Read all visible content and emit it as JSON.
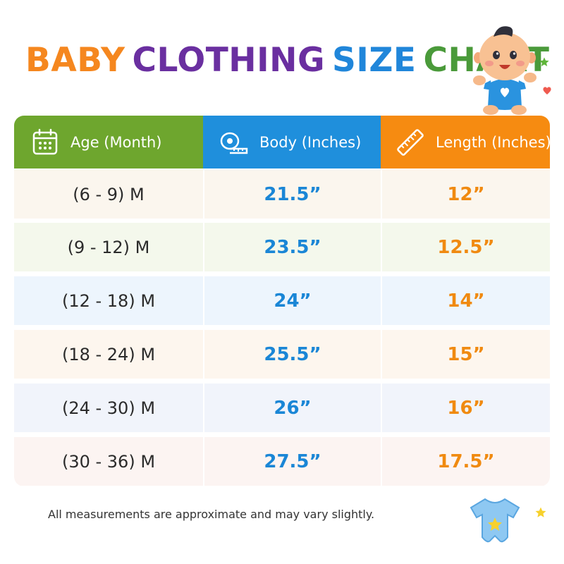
{
  "title": {
    "words": [
      {
        "text": "BABY",
        "color": "#f5871f"
      },
      {
        "text": "CLOTHING",
        "color": "#6a2fa0"
      },
      {
        "text": "SIZE",
        "color": "#2086da"
      },
      {
        "text": "CHART",
        "color": "#4a9a3a"
      }
    ]
  },
  "table": {
    "headers": [
      {
        "label": "Age (Month)",
        "icon": "calendar-icon",
        "color": "#6ea62e"
      },
      {
        "label": "Body (Inches)",
        "icon": "measuring-tape-icon",
        "color": "#1f8fdc"
      },
      {
        "label": "Length (Inches)",
        "icon": "ruler-icon",
        "color": "#f68b11"
      }
    ],
    "rows": [
      {
        "age": "(6 - 9) M",
        "body": "21.5”",
        "length": "12”",
        "bg": "#fbf6ee"
      },
      {
        "age": "(9 - 12) M",
        "body": "23.5”",
        "length": "12.5”",
        "bg": "#f4f8ec"
      },
      {
        "age": "(12 - 18) M",
        "body": "24”",
        "length": "14”",
        "bg": "#edf5fd"
      },
      {
        "age": "(18 - 24) M",
        "body": "25.5”",
        "length": "15”",
        "bg": "#fdf6ee"
      },
      {
        "age": "(24 - 30) M",
        "body": "26”",
        "length": "16”",
        "bg": "#f1f4fb"
      },
      {
        "age": "(30 - 36) M",
        "body": "27.5”",
        "length": "17.5”",
        "bg": "#fcf4f2"
      }
    ]
  },
  "footnote": "All measurements are approximate and may vary slightly.",
  "decorations": {
    "baby_illustration": "baby-icon",
    "onesie_illustration": "onesie-icon",
    "colors": {
      "star_green": "#5fb53a",
      "heart_red": "#ef5a4f",
      "star_yellow": "#f7d12c"
    }
  }
}
